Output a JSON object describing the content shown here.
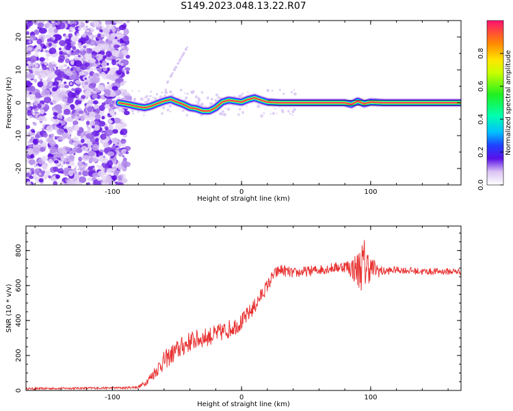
{
  "title": "S149.2023.048.13.22.R07",
  "chart_data": [
    {
      "type": "heatmap",
      "xlabel": "Height of straight line (km)",
      "ylabel": "Frequency (Hz)",
      "xlim": [
        -167,
        170
      ],
      "ylim": [
        -25,
        25
      ],
      "x_ticks": [
        -100,
        0,
        100
      ],
      "x_tick_labels": [
        "-100",
        "0",
        "100"
      ],
      "y_ticks": [
        -20,
        -10,
        0,
        10,
        20
      ],
      "y_tick_labels": [
        "-20",
        "-10",
        "0",
        "10",
        "20"
      ],
      "noise_region_x": [
        -167,
        -88
      ],
      "ridge": {
        "x": [
          -95,
          -88,
          -80,
          -75,
          -70,
          -65,
          -60,
          -55,
          -50,
          -45,
          -40,
          -35,
          -30,
          -25,
          -20,
          -15,
          -10,
          -5,
          0,
          5,
          10,
          15,
          20,
          30,
          40,
          50,
          60,
          70,
          80,
          85,
          90,
          95,
          100,
          110,
          120,
          140,
          160,
          170
        ],
        "freq": [
          0,
          -0.5,
          -1.2,
          -1.5,
          -1.0,
          -0.2,
          0.5,
          1.0,
          0.2,
          -0.5,
          -1.5,
          -1.8,
          -2.5,
          -2.5,
          -1.5,
          0.2,
          0.8,
          0.5,
          0.2,
          1.0,
          1.5,
          0.8,
          0.2,
          0,
          0,
          0,
          0,
          0,
          0,
          -0.5,
          0.5,
          -0.3,
          0.2,
          0,
          0,
          0,
          0,
          0
        ]
      },
      "colorbar": {
        "label": "Normalized spectral amplitude",
        "range": [
          0,
          1
        ],
        "ticks": [
          0.0,
          0.2,
          0.4,
          0.6,
          0.8
        ],
        "tick_labels": [
          "0.0",
          "0.2",
          "0.4",
          "0.6",
          "0.8"
        ]
      }
    },
    {
      "type": "line",
      "xlabel": "Height of straight line (km)",
      "ylabel": "SNR (10 * v/v)",
      "xlim": [
        -167,
        170
      ],
      "ylim": [
        0,
        940
      ],
      "x_ticks": [
        -100,
        0,
        100
      ],
      "x_tick_labels": [
        "-100",
        "0",
        "100"
      ],
      "y_ticks": [
        0,
        200,
        400,
        600,
        800
      ],
      "y_tick_labels": [
        "0",
        "200",
        "400",
        "600",
        "800"
      ],
      "series": [
        {
          "color": "#e83232",
          "x": [
            -167,
            -140,
            -110,
            -90,
            -80,
            -75,
            -70,
            -60,
            -50,
            -40,
            -30,
            -20,
            -10,
            0,
            10,
            20,
            25,
            30,
            40,
            50,
            60,
            70,
            80,
            85,
            90,
            95,
            100,
            110,
            120,
            140,
            160,
            170
          ],
          "y": [
            10,
            12,
            14,
            15,
            20,
            40,
            80,
            170,
            230,
            280,
            300,
            320,
            350,
            390,
            480,
            600,
            660,
            690,
            670,
            680,
            690,
            700,
            710,
            700,
            690,
            720,
            700,
            680,
            690,
            680,
            680,
            680
          ],
          "spread": [
            6,
            6,
            6,
            6,
            8,
            15,
            30,
            55,
            60,
            60,
            55,
            55,
            55,
            50,
            45,
            40,
            35,
            35,
            30,
            30,
            30,
            30,
            35,
            60,
            110,
            160,
            70,
            25,
            20,
            20,
            20,
            20
          ]
        }
      ]
    }
  ]
}
